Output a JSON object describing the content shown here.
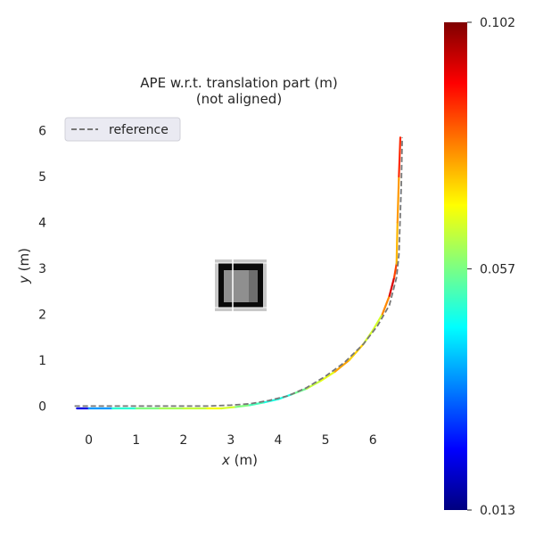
{
  "chart_data": {
    "type": "line",
    "title_lines": [
      "APE w.r.t. translation part (m)",
      "(not aligned)"
    ],
    "xlabel": {
      "var": "x",
      "unit": " (m)"
    },
    "ylabel": {
      "var": "y",
      "unit": " (m)"
    },
    "xlim": [
      -0.35,
      6.75
    ],
    "ylim": [
      -0.4,
      6.3
    ],
    "xticks": [
      0,
      1,
      2,
      3,
      4,
      5,
      6
    ],
    "yticks": [
      0,
      1,
      2,
      3,
      4,
      5,
      6
    ],
    "grid": false,
    "legend": {
      "entries": [
        "reference"
      ],
      "position": "top-left"
    },
    "series": [
      {
        "name": "reference",
        "style": "dashed",
        "color": "#777777",
        "x": [
          -0.3,
          0.5,
          1.5,
          2.5,
          3.0,
          3.4,
          3.8,
          4.2,
          4.6,
          5.0,
          5.4,
          5.8,
          6.1,
          6.35,
          6.5,
          6.55,
          6.6,
          6.62
        ],
        "y": [
          0.0,
          0.0,
          0.0,
          0.0,
          0.02,
          0.05,
          0.12,
          0.22,
          0.4,
          0.65,
          0.95,
          1.35,
          1.75,
          2.2,
          2.8,
          3.3,
          4.8,
          5.85
        ]
      },
      {
        "name": "",
        "style": "colormap",
        "x": [
          -0.25,
          0.0,
          0.5,
          1.0,
          1.5,
          2.0,
          2.5,
          2.8,
          3.1,
          3.4,
          3.7,
          4.0,
          4.3,
          4.6,
          4.9,
          5.2,
          5.5,
          5.8,
          6.0,
          6.2,
          6.35,
          6.45,
          6.5,
          6.52,
          6.55,
          6.58
        ],
        "y": [
          -0.05,
          -0.05,
          -0.05,
          -0.05,
          -0.05,
          -0.05,
          -0.05,
          -0.05,
          -0.02,
          0.02,
          0.08,
          0.15,
          0.26,
          0.38,
          0.55,
          0.75,
          1.0,
          1.35,
          1.65,
          2.0,
          2.4,
          2.8,
          3.1,
          4.0,
          5.0,
          5.85
        ],
        "error": [
          0.013,
          0.03,
          0.045,
          0.055,
          0.06,
          0.062,
          0.065,
          0.07,
          0.06,
          0.055,
          0.05,
          0.048,
          0.05,
          0.062,
          0.065,
          0.068,
          0.085,
          0.06,
          0.07,
          0.06,
          0.098,
          0.09,
          0.08,
          0.07,
          0.085,
          0.09
        ]
      }
    ],
    "colorbar": {
      "colormap": "jet",
      "min": 0.013,
      "max": 0.102,
      "ticks": [
        0.013,
        0.057,
        0.102
      ],
      "tick_labels": [
        "0.013",
        "0.057",
        "0.102"
      ]
    }
  }
}
